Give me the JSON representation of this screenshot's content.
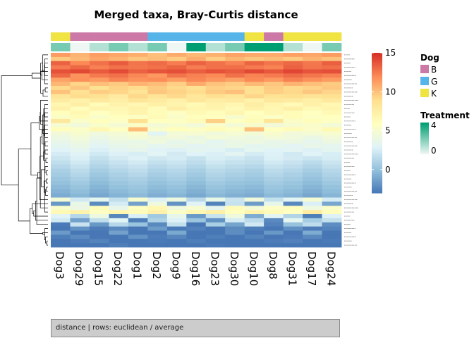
{
  "chart_data": {
    "type": "heatmap",
    "title": "Merged taxa, Bray-Curtis distance",
    "columns": [
      "Dog3",
      "Dog29",
      "Dog15",
      "Dog22",
      "Dog1",
      "Dog2",
      "Dog9",
      "Dog16",
      "Dog23",
      "Dog30",
      "Dog10",
      "Dog8",
      "Dog31",
      "Dog17",
      "Dog24"
    ],
    "dog_groups": [
      "K",
      "B",
      "B",
      "B",
      "B",
      "G",
      "G",
      "G",
      "G",
      "G",
      "K",
      "B",
      "K",
      "K",
      "K"
    ],
    "treatment": [
      2,
      0,
      1,
      2,
      1,
      2,
      0,
      4,
      1,
      2,
      4,
      4,
      1,
      0,
      2
    ],
    "row_labels_visible": false,
    "scale": {
      "min": -3,
      "max": 15,
      "ticks": [
        0,
        5,
        10,
        15
      ]
    },
    "palette": {
      "heat": [
        "#4575b4",
        "#91bfdb",
        "#e0f3f8",
        "#ffffbf",
        "#fee090",
        "#fc8d59",
        "#d73027"
      ],
      "dog_colors": {
        "B": "#cc79a7",
        "G": "#56b4e9",
        "K": "#f0e442"
      },
      "treatment_colors": [
        "#eef7f3",
        "#009e73"
      ]
    },
    "legends": {
      "dog": {
        "title": "Dog",
        "entries": [
          "B",
          "G",
          "K"
        ]
      },
      "treatment": {
        "title": "Treatment",
        "ticks": [
          4,
          0
        ]
      }
    },
    "values": [
      [
        11.5,
        10.6,
        11.4,
        11.1,
        10.8,
        10.2,
        10.9,
        10.4,
        10.7,
        11.2,
        11.0,
        10.9,
        11.3,
        11.1,
        11.5
      ],
      [
        9.8,
        10.4,
        11.1,
        10.6,
        9.9,
        10.3,
        9.7,
        10.8,
        9.6,
        10.5,
        9.9,
        10.3,
        9.8,
        10.6,
        10.1
      ],
      [
        13.4,
        12.1,
        12.9,
        13.6,
        12.8,
        13.1,
        12.5,
        13.4,
        12.9,
        12.4,
        13.3,
        12.8,
        13.2,
        12.7,
        13.5
      ],
      [
        12.6,
        13.2,
        12.4,
        12.9,
        12.7,
        12.9,
        13.3,
        12.5,
        12.9,
        13.0,
        12.6,
        12.3,
        13.4,
        12.8,
        13.0
      ],
      [
        13.9,
        14.2,
        13.6,
        14.1,
        13.4,
        13.8,
        14.0,
        13.5,
        13.9,
        13.6,
        14.2,
        13.7,
        14.3,
        13.8,
        14.0
      ],
      [
        13.2,
        11.8,
        12.6,
        12.9,
        12.2,
        11.6,
        12.8,
        12.4,
        12.1,
        12.9,
        12.3,
        12.6,
        13.1,
        12.7,
        12.4
      ],
      [
        11.2,
        11.9,
        11.5,
        12.3,
        11.8,
        12.0,
        11.4,
        12.2,
        11.7,
        11.3,
        12.1,
        11.6,
        12.4,
        11.9,
        11.5
      ],
      [
        10.5,
        9.4,
        10.2,
        9.8,
        10.6,
        10.3,
        9.6,
        10.9,
        10.1,
        9.7,
        10.4,
        9.9,
        10.6,
        10.2,
        9.8
      ],
      [
        9.2,
        9.9,
        8.8,
        9.5,
        9.1,
        9.8,
        9.3,
        8.9,
        9.6,
        9.4,
        9.0,
        9.7,
        9.2,
        9.5,
        9.9
      ],
      [
        10.1,
        8.9,
        9.7,
        9.4,
        8.6,
        9.9,
        9.5,
        9.1,
        9.8,
        10.2,
        8.9,
        9.6,
        9.3,
        9.9,
        9.4
      ],
      [
        8.4,
        9.1,
        8.8,
        7.9,
        9.3,
        8.6,
        9.2,
        8.3,
        8.9,
        8.5,
        9.4,
        8.7,
        9.0,
        8.6,
        8.8
      ],
      [
        7.8,
        7.2,
        8.1,
        7.6,
        8.4,
        7.9,
        7.4,
        8.3,
        7.7,
        8.0,
        7.3,
        8.2,
        7.9,
        7.5,
        8.1
      ],
      [
        6.9,
        7.6,
        6.4,
        7.2,
        6.8,
        7.5,
        7.1,
        6.6,
        7.3,
        6.9,
        7.7,
        7.0,
        6.5,
        7.4,
        6.8
      ],
      [
        7.4,
        6.2,
        7.0,
        6.7,
        7.2,
        6.4,
        7.6,
        6.9,
        7.1,
        6.5,
        7.3,
        6.8,
        7.5,
        6.6,
        7.0
      ],
      [
        6.1,
        6.8,
        5.9,
        6.5,
        7.1,
        6.3,
        5.8,
        6.6,
        6.2,
        6.9,
        6.0,
        6.7,
        6.4,
        5.9,
        6.6
      ],
      [
        5.6,
        6.3,
        5.4,
        6.0,
        5.8,
        6.5,
        5.5,
        6.1,
        5.9,
        5.3,
        6.2,
        5.7,
        6.4,
        5.8,
        6.0
      ],
      [
        8.2,
        5.4,
        6.1,
        5.7,
        8.9,
        6.0,
        5.8,
        6.4,
        9.6,
        5.9,
        6.3,
        8.4,
        5.6,
        6.2,
        5.8
      ],
      [
        5.1,
        4.6,
        5.4,
        4.9,
        5.6,
        4.8,
        5.2,
        4.7,
        5.5,
        4.9,
        5.3,
        4.6,
        5.1,
        5.4,
        4.8
      ],
      [
        6.2,
        5.6,
        6.8,
        5.9,
        10.3,
        5.4,
        6.1,
        5.7,
        6.4,
        5.8,
        10.2,
        5.9,
        6.3,
        5.5,
        6.6
      ],
      [
        4.6,
        5.2,
        4.4,
        4.9,
        5.5,
        3.2,
        4.7,
        5.1,
        4.5,
        5.0,
        4.8,
        5.3,
        4.6,
        4.9,
        5.2
      ],
      [
        4.2,
        4.7,
        4.0,
        4.5,
        4.9,
        4.3,
        4.6,
        4.1,
        4.8,
        4.4,
        4.2,
        4.7,
        4.5,
        4.0,
        4.6
      ],
      [
        3.8,
        4.3,
        3.6,
        4.1,
        3.9,
        4.4,
        3.7,
        4.2,
        3.5,
        4.0,
        4.3,
        3.8,
        4.1,
        3.6,
        4.2
      ],
      [
        3.4,
        3.9,
        3.2,
        3.7,
        4.0,
        3.5,
        3.8,
        3.3,
        3.6,
        3.9,
        3.4,
        3.7,
        3.2,
        3.8,
        3.5
      ],
      [
        3.0,
        3.5,
        2.8,
        3.3,
        3.6,
        3.1,
        2.9,
        3.4,
        3.2,
        2.7,
        3.5,
        3.0,
        3.3,
        2.9,
        3.4
      ],
      [
        2.6,
        3.1,
        2.4,
        2.9,
        2.7,
        3.2,
        2.5,
        3.0,
        2.8,
        3.3,
        2.6,
        2.9,
        2.4,
        3.1,
        2.7
      ],
      [
        2.2,
        2.8,
        1.9,
        2.5,
        2.9,
        2.3,
        2.6,
        2.0,
        2.7,
        2.4,
        2.1,
        2.8,
        2.5,
        2.2,
        2.6
      ],
      [
        1.8,
        2.4,
        1.6,
        2.1,
        2.5,
        1.9,
        2.2,
        1.7,
        2.3,
        2.0,
        1.8,
        2.4,
        2.1,
        1.6,
        2.2
      ],
      [
        1.4,
        2.0,
        1.2,
        1.7,
        2.1,
        1.5,
        1.8,
        1.3,
        1.9,
        1.6,
        1.4,
        2.0,
        1.7,
        1.2,
        1.8
      ],
      [
        1.0,
        1.6,
        0.8,
        1.3,
        1.7,
        1.1,
        1.4,
        0.9,
        1.5,
        1.2,
        1.0,
        1.6,
        1.3,
        0.8,
        1.4
      ],
      [
        0.7,
        1.3,
        0.5,
        1.0,
        1.4,
        0.8,
        1.1,
        0.6,
        1.2,
        0.9,
        0.7,
        1.3,
        1.0,
        0.5,
        1.1
      ],
      [
        0.4,
        0.9,
        0.2,
        0.7,
        1.0,
        0.5,
        0.8,
        0.3,
        0.9,
        0.6,
        0.4,
        1.0,
        0.7,
        0.2,
        0.8
      ],
      [
        0.1,
        0.6,
        -0.1,
        0.4,
        0.7,
        0.2,
        0.5,
        0.0,
        0.6,
        0.3,
        0.1,
        0.7,
        0.4,
        -0.1,
        0.5
      ],
      [
        -0.2,
        0.3,
        -0.4,
        0.1,
        0.4,
        -0.1,
        0.2,
        -0.3,
        0.3,
        0.0,
        -0.2,
        0.4,
        0.1,
        -0.4,
        0.2
      ],
      [
        -0.5,
        0.0,
        -0.7,
        -0.2,
        0.1,
        -0.4,
        -0.1,
        -0.6,
        0.0,
        -0.3,
        -0.5,
        0.1,
        -0.2,
        -0.7,
        -0.1
      ],
      [
        -0.8,
        -0.3,
        -1.0,
        -0.5,
        -0.2,
        -0.7,
        -0.4,
        -0.9,
        -0.3,
        -0.6,
        -0.8,
        -0.2,
        -0.5,
        -1.0,
        -0.4
      ],
      [
        4.8,
        2.4,
        3.6,
        1.8,
        5.2,
        2.9,
        4.3,
        1.5,
        3.9,
        2.2,
        4.6,
        1.9,
        3.3,
        5.0,
        2.6
      ],
      [
        -1.6,
        3.9,
        -2.1,
        2.6,
        -1.2,
        4.4,
        -1.8,
        3.1,
        -2.4,
        2.0,
        -1.4,
        3.7,
        -2.2,
        2.8,
        -1.0
      ],
      [
        5.4,
        4.1,
        6.2,
        3.8,
        5.9,
        6.8,
        4.5,
        5.1,
        3.6,
        6.4,
        4.8,
        5.7,
        6.1,
        4.3,
        5.5
      ],
      [
        6.6,
        7.2,
        5.8,
        6.9,
        6.3,
        7.4,
        5.6,
        6.8,
        7.5,
        6.0,
        7.1,
        6.5,
        5.9,
        7.8,
        6.2
      ],
      [
        3.1,
        1.4,
        4.2,
        -2.3,
        2.8,
        0.6,
        3.7,
        -1.5,
        2.1,
        4.4,
        -0.8,
        3.3,
        1.2,
        -2.6,
        2.9
      ],
      [
        2.4,
        -1.2,
        1.8,
        3.2,
        -2.6,
        1.1,
        2.9,
        0.4,
        -1.8,
        2.6,
        1.6,
        -2.2,
        3.5,
        0.8,
        1.9
      ],
      [
        -2.8,
        2.1,
        -1.6,
        1.4,
        0.3,
        -2.2,
        1.9,
        -2.9,
        0.9,
        -1.1,
        2.4,
        -2.5,
        0.2,
        1.7,
        -2.0
      ],
      [
        -2.9,
        -1.8,
        -2.7,
        -2.2,
        -2.9,
        -1.4,
        -2.8,
        -2.5,
        -2.9,
        -2.1,
        -2.6,
        -2.9,
        -1.9,
        -2.7,
        -2.4
      ],
      [
        -1.5,
        -2.9,
        -2.9,
        -1.2,
        -2.9,
        -2.9,
        -0.9,
        -2.9,
        -2.9,
        -2.0,
        -2.9,
        -1.6,
        -2.9,
        -0.8,
        -2.9
      ],
      [
        -2.6,
        -2.1,
        -2.9,
        -2.9,
        -1.8,
        -2.7,
        -2.3,
        -2.9,
        -2.6,
        -2.9,
        -2.4,
        -2.9,
        -2.8,
        -2.2,
        -2.9
      ],
      [
        -2.9,
        -2.7,
        -2.4,
        -2.9,
        -2.9,
        -2.8,
        -2.9,
        -2.6,
        -2.9,
        -2.9,
        -2.9,
        -2.7,
        -2.5,
        -2.9,
        -2.8
      ],
      [
        -2.9,
        -2.9,
        -2.9,
        -2.6,
        -2.9,
        -2.9,
        -2.9,
        -2.9,
        -2.8,
        -2.9,
        -2.9,
        -2.9,
        -2.9,
        -2.9,
        -2.9
      ]
    ]
  },
  "status_bar": {
    "text": "distance | rows: euclidean / average"
  }
}
